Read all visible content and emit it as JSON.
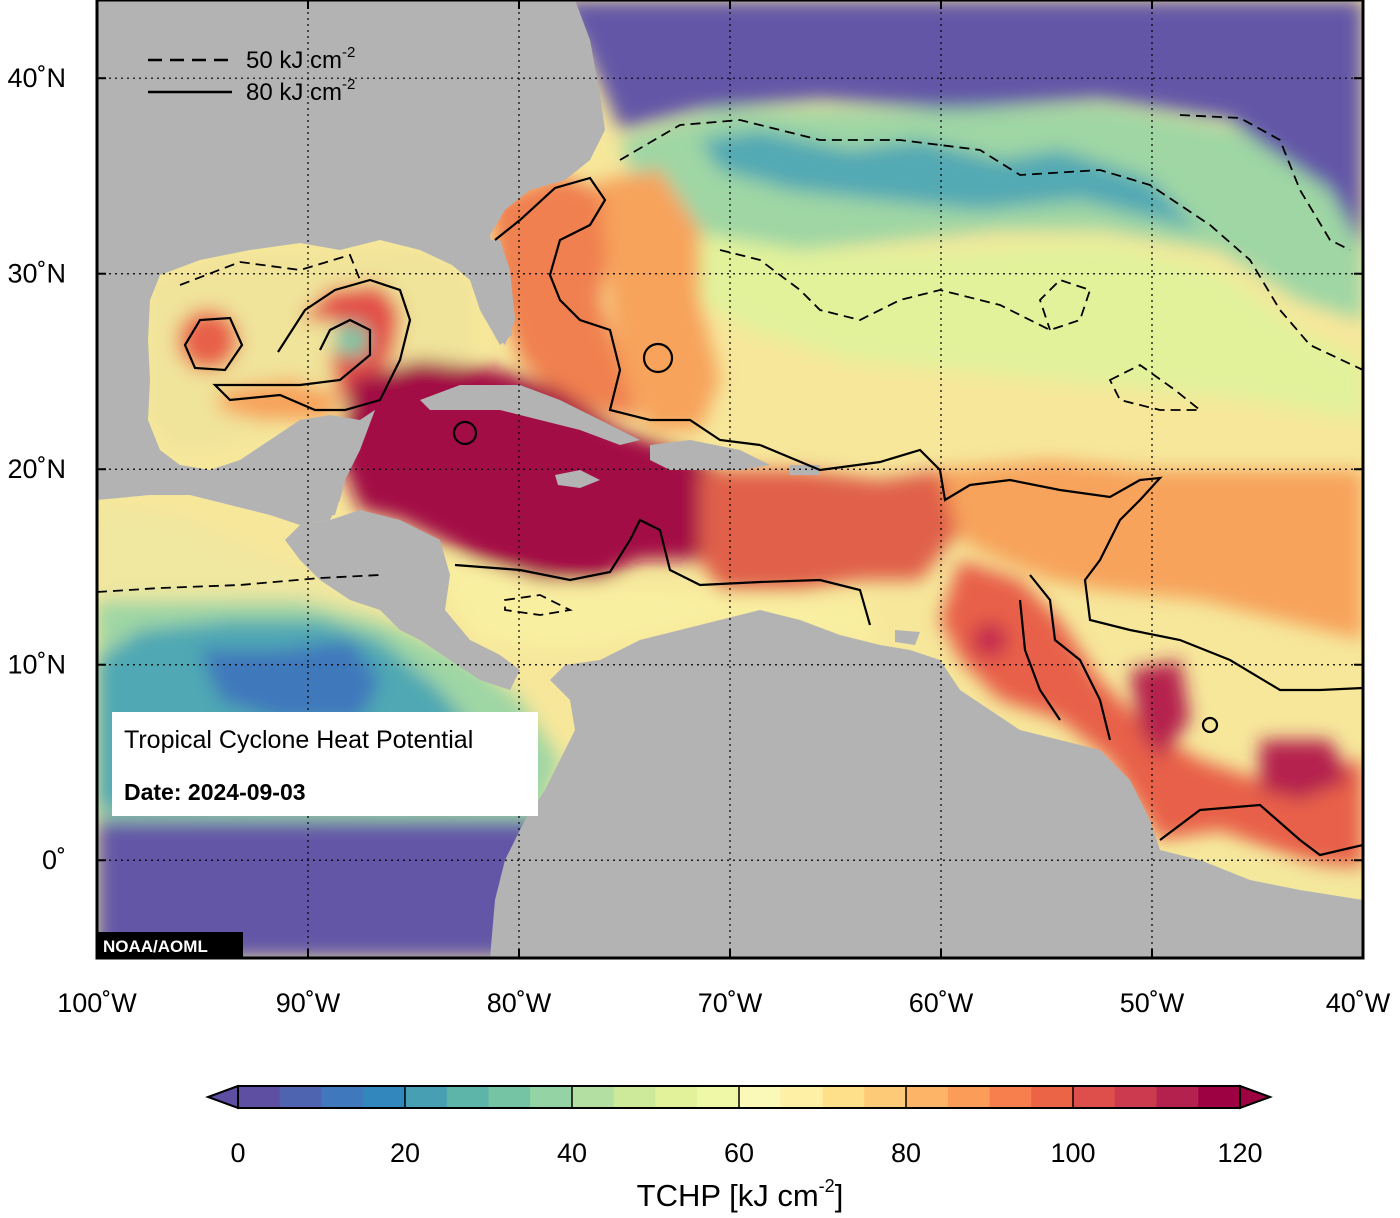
{
  "map": {
    "lon_min": -100,
    "lon_max": -40,
    "lat_min": -5,
    "lat_max": 44,
    "lon_ticks": [
      {
        "value": -100,
        "label": "100˚W"
      },
      {
        "value": -90,
        "label": "90˚W"
      },
      {
        "value": -80,
        "label": "80˚W"
      },
      {
        "value": -70,
        "label": "70˚W"
      },
      {
        "value": -60,
        "label": "60˚W"
      },
      {
        "value": -50,
        "label": "50˚W"
      },
      {
        "value": -40,
        "label": "40˚W"
      }
    ],
    "lat_ticks": [
      {
        "value": 40,
        "label": "40˚N"
      },
      {
        "value": 30,
        "label": "30˚N"
      },
      {
        "value": 20,
        "label": "20˚N"
      },
      {
        "value": 10,
        "label": "10˚N"
      },
      {
        "value": 0,
        "label": "0˚"
      }
    ],
    "ocean_color": "#f6e79b",
    "land_color": "#b3b3b3"
  },
  "contour_legend": {
    "dashed": {
      "value": "50 kJ cm",
      "sup": "-2"
    },
    "solid": {
      "value": "80 kJ cm",
      "sup": "-2"
    }
  },
  "info_box": {
    "title": "Tropical Cyclone Heat Potential",
    "date": "Date: 2024-09-03"
  },
  "credit": "NOAA/AOML",
  "colorbar": {
    "min": 0,
    "max": 120,
    "ticks": [
      0,
      20,
      40,
      60,
      80,
      100,
      120
    ],
    "title": "TCHP [kJ cm",
    "title_sup": "-2",
    "title_end": "]",
    "colors": [
      "#5e4fa2",
      "#4e64b0",
      "#3f78bc",
      "#3288bd",
      "#479fb3",
      "#5db4a8",
      "#75c5a4",
      "#94d3a4",
      "#b3e0a2",
      "#cdea9b",
      "#e1f29a",
      "#eff8a6",
      "#faf9b8",
      "#fef0a4",
      "#fee08b",
      "#fdcb77",
      "#fdb466",
      "#fb9c59",
      "#f67f4d",
      "#ec6446",
      "#de4e4b",
      "#cb3a4e",
      "#b5214e",
      "#9e0142"
    ],
    "under_color": "#5e4fa2",
    "over_color": "#9e0142"
  },
  "tchp_palette": {
    "deep_blue": "#6457a7",
    "teal": "#4fa8b3",
    "green": "#9fd6a4",
    "yellow_green": "#e2f29b",
    "pale_yellow": "#f9efa1",
    "orange": "#f7a35c",
    "red_orange": "#e8604a",
    "dark_red": "#a30e45"
  }
}
